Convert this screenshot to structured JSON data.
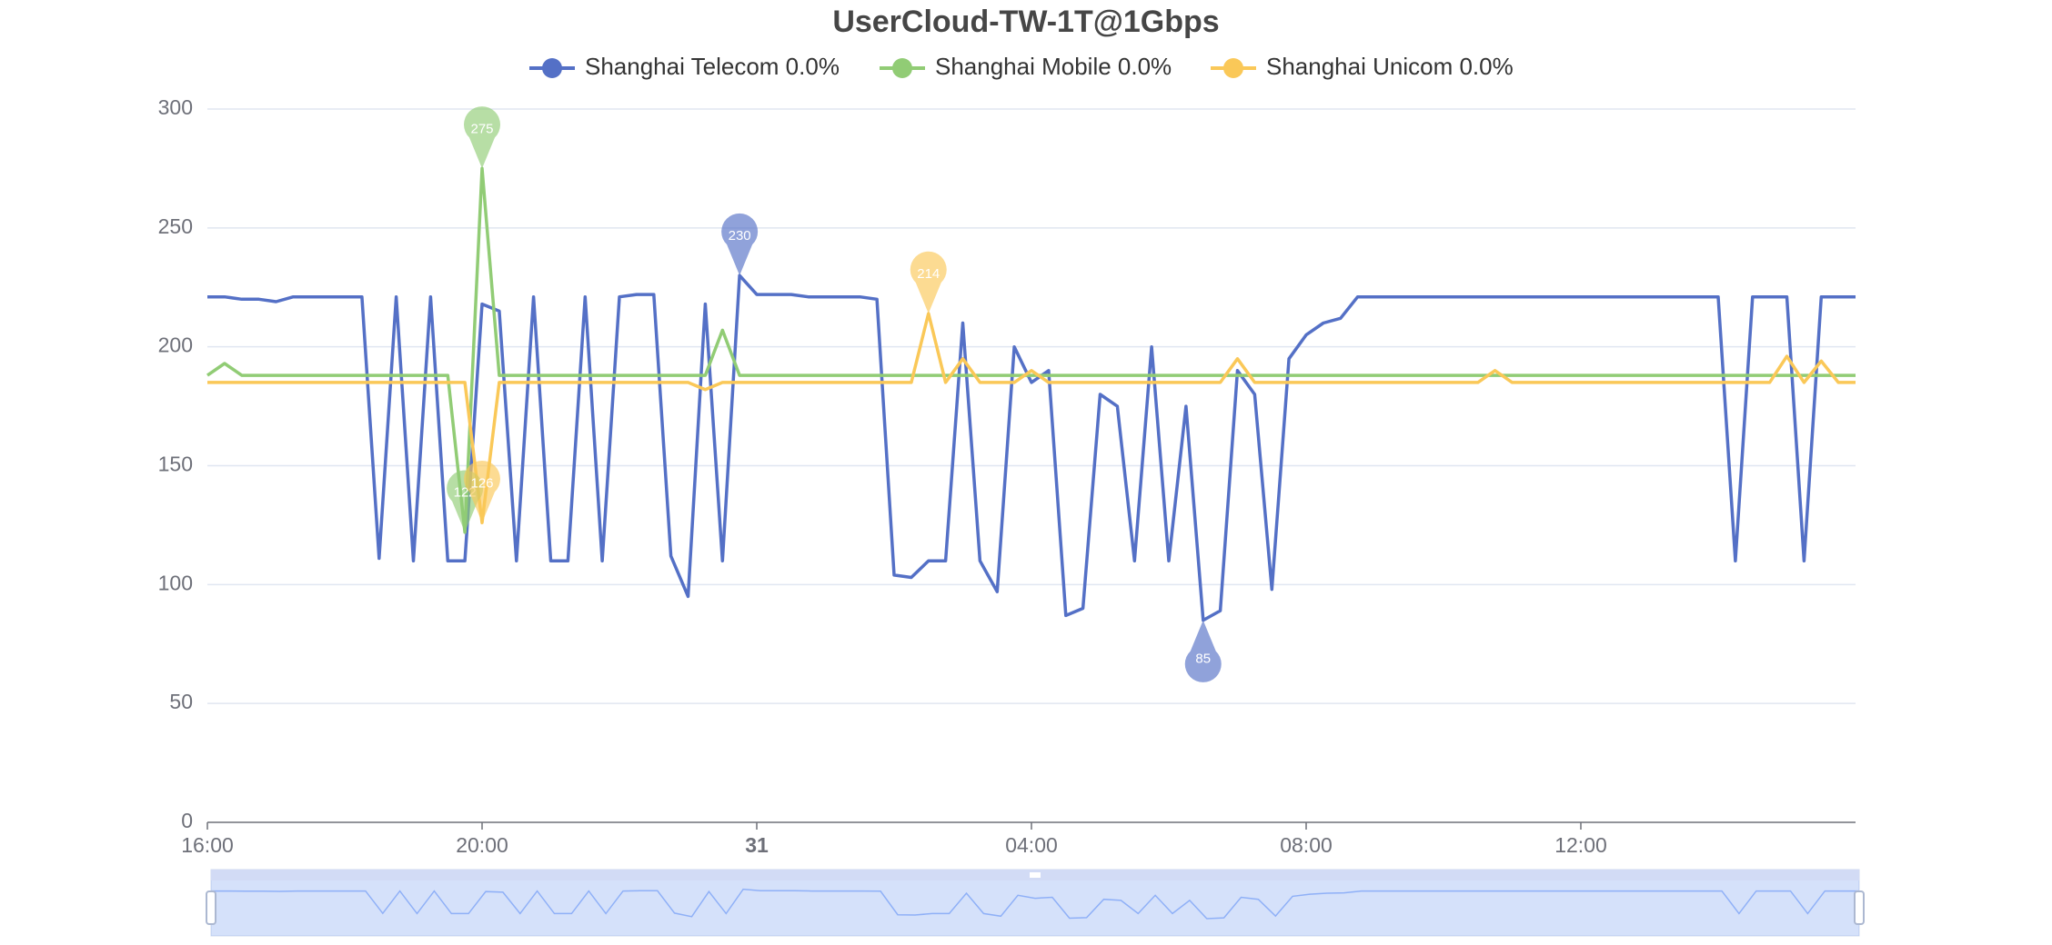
{
  "chart_data": {
    "type": "line",
    "title": "UserCloud-TW-1T@1Gbps",
    "x": [
      0,
      0.25,
      0.5,
      0.75,
      1,
      1.25,
      1.5,
      1.75,
      2,
      2.25,
      2.5,
      2.75,
      3,
      3.25,
      3.5,
      3.75,
      4,
      4.25,
      4.5,
      4.75,
      5,
      5.25,
      5.5,
      5.75,
      6,
      6.25,
      6.5,
      6.75,
      7,
      7.25,
      7.5,
      7.75,
      8,
      8.25,
      8.5,
      8.75,
      9,
      9.25,
      9.5,
      9.75,
      10,
      10.25,
      10.5,
      10.75,
      11,
      11.25,
      11.5,
      11.75,
      12,
      12.25,
      12.5,
      12.75,
      13,
      13.25,
      13.5,
      13.75,
      14,
      14.25,
      14.5,
      14.75,
      15,
      15.25,
      15.5,
      15.75,
      16,
      16.25,
      16.5,
      16.75,
      17,
      17.25,
      17.5,
      17.75,
      18,
      18.25,
      18.5,
      18.75,
      19,
      19.25,
      19.5,
      19.75,
      20,
      20.25,
      20.5,
      20.75,
      21,
      21.25,
      21.5,
      21.75,
      22,
      22.25,
      22.5,
      22.75,
      23,
      23.25,
      23.5,
      23.75,
      24
    ],
    "series": [
      {
        "name": "Shanghai Telecom 0.0%",
        "color": "#5470c6",
        "values": [
          221,
          221,
          220,
          220,
          219,
          221,
          221,
          221,
          221,
          221,
          111,
          221,
          110,
          221,
          110,
          110,
          218,
          215,
          110,
          221,
          110,
          110,
          221,
          110,
          221,
          222,
          222,
          112,
          95,
          218,
          110,
          230,
          222,
          222,
          222,
          221,
          221,
          221,
          221,
          220,
          104,
          103,
          110,
          110,
          210,
          110,
          97,
          200,
          185,
          190,
          87,
          90,
          180,
          175,
          110,
          200,
          110,
          175,
          85,
          89,
          190,
          180,
          98,
          195,
          205,
          210,
          212,
          221,
          221,
          221,
          221,
          221,
          221,
          221,
          221,
          221,
          221,
          221,
          221,
          221,
          221,
          221,
          221,
          221,
          221,
          221,
          221,
          221,
          221,
          110,
          221,
          221,
          221,
          110,
          221,
          221,
          221
        ]
      },
      {
        "name": "Shanghai Mobile 0.0%",
        "color": "#91cc75",
        "values": [
          188,
          193,
          188,
          188,
          188,
          188,
          188,
          188,
          188,
          188,
          188,
          188,
          188,
          188,
          188,
          122,
          275,
          188,
          188,
          188,
          188,
          188,
          188,
          188,
          188,
          188,
          188,
          188,
          188,
          188,
          207,
          188,
          188,
          188,
          188,
          188,
          188,
          188,
          188,
          188,
          188,
          188,
          188,
          188,
          188,
          188,
          188,
          188,
          188,
          188,
          188,
          188,
          188,
          188,
          188,
          188,
          188,
          188,
          188,
          188,
          188,
          188,
          188,
          188,
          188,
          188,
          188,
          188,
          188,
          188,
          188,
          188,
          188,
          188,
          188,
          188,
          188,
          188,
          188,
          188,
          188,
          188,
          188,
          188,
          188,
          188,
          188,
          188,
          188,
          188,
          188,
          188,
          188,
          188,
          188,
          188,
          188
        ]
      },
      {
        "name": "Shanghai Unicom 0.0%",
        "color": "#fac858",
        "values": [
          185,
          185,
          185,
          185,
          185,
          185,
          185,
          185,
          185,
          185,
          185,
          185,
          185,
          185,
          185,
          185,
          126,
          185,
          185,
          185,
          185,
          185,
          185,
          185,
          185,
          185,
          185,
          185,
          185,
          182,
          185,
          185,
          185,
          185,
          185,
          185,
          185,
          185,
          185,
          185,
          185,
          185,
          214,
          185,
          195,
          185,
          185,
          185,
          190,
          185,
          185,
          185,
          185,
          185,
          185,
          185,
          185,
          185,
          185,
          185,
          195,
          185,
          185,
          185,
          185,
          185,
          185,
          185,
          185,
          185,
          185,
          185,
          185,
          185,
          185,
          190,
          185,
          185,
          185,
          185,
          185,
          185,
          185,
          185,
          185,
          185,
          185,
          185,
          185,
          185,
          185,
          185,
          196,
          185,
          194,
          185,
          185
        ]
      }
    ],
    "mark_points": [
      "max",
      "min"
    ],
    "xlim": [
      0,
      24
    ],
    "xticks": [
      {
        "value": 0,
        "label": "16:00"
      },
      {
        "value": 4,
        "label": "20:00"
      },
      {
        "value": 8,
        "label": "31"
      },
      {
        "value": 12,
        "label": "04:00"
      },
      {
        "value": 16,
        "label": "08:00"
      },
      {
        "value": 20,
        "label": "12:00"
      }
    ],
    "ylim": [
      0,
      300
    ],
    "yticks": [
      0,
      50,
      100,
      150,
      200,
      250,
      300
    ],
    "grid": true,
    "data_zoom": true
  }
}
